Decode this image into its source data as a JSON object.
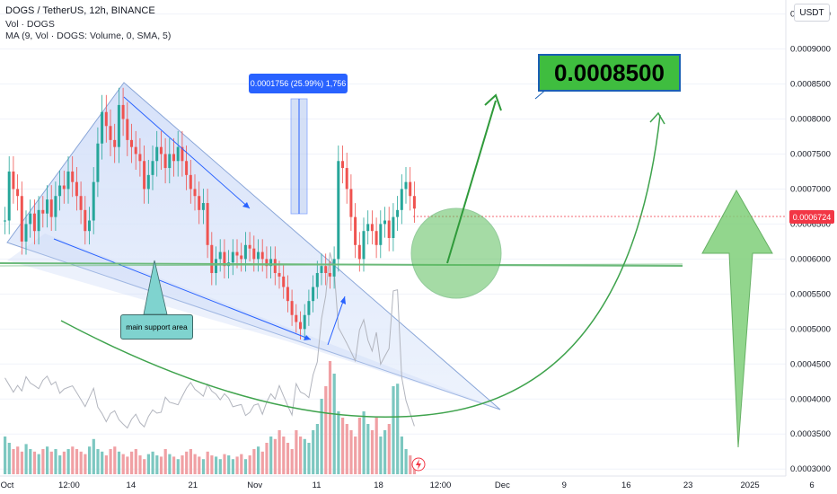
{
  "legend": {
    "title": "DOGS / TetherUS, 12h, BINANCE",
    "volume_label": "Vol · DOGS",
    "ma_label": "MA (9, Vol · DOGS: Volume, 0, SMA, 5)"
  },
  "currency_badge": "USDT",
  "current_price_label": "0.0006724",
  "target_label": "0.0008500",
  "measure_label": "0.0001756 (25.99%) 1,756",
  "support_label": "main support area",
  "colors": {
    "up": "#26a69a",
    "down": "#ef5350",
    "vol_up": "#7cc7c0",
    "vol_down": "#f0a0a4",
    "triangle_fill": "#dbe6fb",
    "arrow_green": "#3fa34d",
    "support_line": "#7fbf8a"
  },
  "chart_data": {
    "type": "candlestick",
    "symbol": "DOGS / TetherUS",
    "interval": "12h",
    "exchange": "BINANCE",
    "y_ticks": [
      "0.0009500",
      "0.0009000",
      "0.0008500",
      "0.0008000",
      "0.0007500",
      "0.0007000",
      "0.0006500",
      "0.0006000",
      "0.0005500",
      "0.0005000",
      "0.0004500",
      "0.0004000",
      "0.0003500",
      "0.0003000"
    ],
    "y_range": [
      0.00029,
      0.00097
    ],
    "x_ticks": [
      "Oct",
      "12:00",
      "14",
      "21",
      "Nov",
      "11",
      "18",
      "12:00",
      "Dec",
      "9",
      "16",
      "23",
      "2025",
      "6"
    ],
    "current_price": 0.0006724,
    "target_price": 0.00085,
    "support_level": 0.0006,
    "measured_move": {
      "change": 0.0001756,
      "percent": 25.99,
      "bars": 1756
    },
    "closes": [
      0.000655,
      0.000725,
      0.0007,
      0.00069,
      0.000625,
      0.00065,
      0.000665,
      0.00064,
      0.00067,
      0.000665,
      0.000685,
      0.00066,
      0.00069,
      0.000705,
      0.0007,
      0.000725,
      0.00071,
      0.00069,
      0.00067,
      0.00064,
      0.000655,
      0.00071,
      0.000765,
      0.00081,
      0.00079,
      0.00077,
      0.00076,
      0.00082,
      0.0008,
      0.00077,
      0.00076,
      0.00075,
      0.00074,
      0.0007,
      0.00072,
      0.00074,
      0.00076,
      0.00075,
      0.00073,
      0.00075,
      0.00074,
      0.00076,
      0.00074,
      0.00072,
      0.0007,
      0.00069,
      0.00067,
      0.00068,
      0.00062,
      0.00058,
      0.0006,
      0.00061,
      0.00059,
      0.000595,
      0.00061,
      0.000605,
      0.0006,
      0.00062,
      0.000615,
      0.0006,
      0.00061,
      0.0006,
      0.00059,
      0.0006,
      0.00058,
      0.000575,
      0.00056,
      0.00054,
      0.00052,
      0.00051,
      0.0005,
      0.00052,
      0.00054,
      0.00056,
      0.00058,
      0.00059,
      0.00058,
      0.000575,
      0.0006,
      0.00074,
      0.00073,
      0.0007,
      0.00066,
      0.00062,
      0.0006,
      0.00064,
      0.00065,
      0.00064,
      0.00062,
      0.00065,
      0.000655,
      0.00063,
      0.00066,
      0.00067,
      0.0007,
      0.00071,
      0.00069,
      0.000672
    ],
    "volumes": [
      0.3,
      0.25,
      0.2,
      0.22,
      0.18,
      0.24,
      0.2,
      0.18,
      0.16,
      0.2,
      0.22,
      0.18,
      0.2,
      0.15,
      0.18,
      0.2,
      0.22,
      0.2,
      0.18,
      0.16,
      0.22,
      0.28,
      0.2,
      0.18,
      0.15,
      0.2,
      0.22,
      0.18,
      0.16,
      0.14,
      0.18,
      0.2,
      0.15,
      0.12,
      0.16,
      0.18,
      0.15,
      0.14,
      0.2,
      0.16,
      0.14,
      0.12,
      0.15,
      0.18,
      0.2,
      0.16,
      0.14,
      0.12,
      0.18,
      0.15,
      0.14,
      0.12,
      0.16,
      0.15,
      0.12,
      0.14,
      0.16,
      0.12,
      0.15,
      0.2,
      0.22,
      0.18,
      0.25,
      0.3,
      0.28,
      0.35,
      0.3,
      0.25,
      0.2,
      0.35,
      0.3,
      0.28,
      0.25,
      0.35,
      0.4,
      0.6,
      0.7,
      0.9,
      0.8,
      0.5,
      0.45,
      0.4,
      0.35,
      0.3,
      0.45,
      0.5,
      0.4,
      0.35,
      0.45,
      0.3,
      0.35,
      0.4,
      0.7,
      0.72,
      0.3,
      0.2,
      0.15,
      0.1
    ]
  }
}
